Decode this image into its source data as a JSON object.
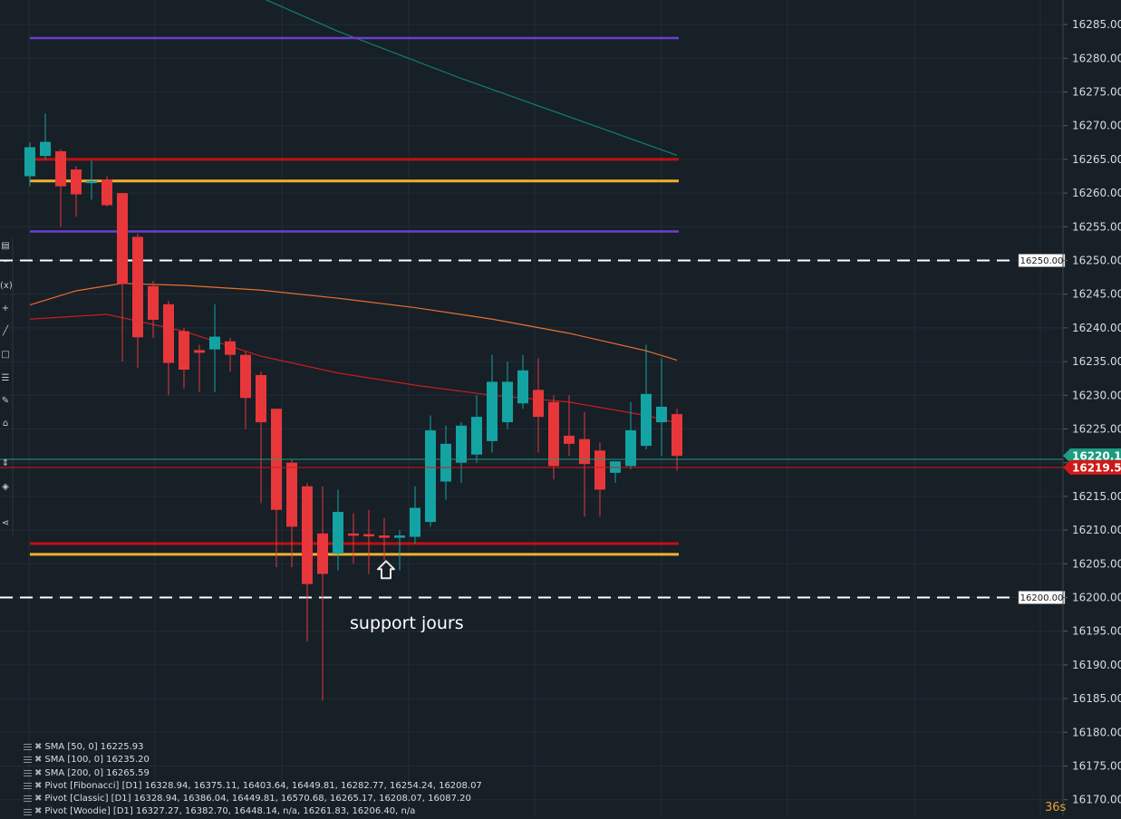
{
  "chart_data": {
    "type": "candlestick",
    "ylim": [
      16168,
      16288
    ],
    "yticks": [
      16170,
      16175,
      16180,
      16185,
      16190,
      16195,
      16200,
      16205,
      16210,
      16215,
      16220,
      16225,
      16230,
      16235,
      16240,
      16245,
      16250,
      16255,
      16260,
      16265,
      16270,
      16275,
      16280,
      16285
    ],
    "ytick_labels": [
      "16170.00",
      "16175.00",
      "16180.00",
      "16185.00",
      "16190.00",
      "16195.00",
      "16200.00",
      "16205.00",
      "16210.00",
      "16215.00",
      "16220.00",
      "16225.00",
      "16230.00",
      "16235.00",
      "16240.00",
      "16245.00",
      "16250.00",
      "16255.00",
      "16260.00",
      "16265.00",
      "16270.00",
      "16275.00",
      "16280.00",
      "16285.00"
    ],
    "grid": true,
    "candles": [
      {
        "o": 16262.5,
        "h": 16267.5,
        "l": 16261.0,
        "c": 16266.8
      },
      {
        "o": 16265.5,
        "h": 16271.8,
        "l": 16265.0,
        "c": 16267.6
      },
      {
        "o": 16266.2,
        "h": 16266.5,
        "l": 16255.0,
        "c": 16261.0
      },
      {
        "o": 16263.5,
        "h": 16264.0,
        "l": 16256.5,
        "c": 16259.8
      },
      {
        "o": 16261.5,
        "h": 16264.8,
        "l": 16259.0,
        "c": 16261.8
      },
      {
        "o": 16262.0,
        "h": 16262.5,
        "l": 16258.0,
        "c": 16258.2
      },
      {
        "o": 16260.0,
        "h": 16260.0,
        "l": 16235.0,
        "c": 16246.5
      },
      {
        "o": 16253.5,
        "h": 16254.0,
        "l": 16234.0,
        "c": 16238.6
      },
      {
        "o": 16246.2,
        "h": 16247.0,
        "l": 16238.5,
        "c": 16241.2
      },
      {
        "o": 16243.5,
        "h": 16244.0,
        "l": 16230.0,
        "c": 16234.8
      },
      {
        "o": 16239.5,
        "h": 16240.0,
        "l": 16231.0,
        "c": 16233.8
      },
      {
        "o": 16236.7,
        "h": 16237.5,
        "l": 16230.5,
        "c": 16236.3
      },
      {
        "o": 16236.8,
        "h": 16243.5,
        "l": 16230.5,
        "c": 16238.7
      },
      {
        "o": 16238.0,
        "h": 16238.5,
        "l": 16233.5,
        "c": 16236.0
      },
      {
        "o": 16236.0,
        "h": 16236.5,
        "l": 16225.0,
        "c": 16229.6
      },
      {
        "o": 16233.0,
        "h": 16233.5,
        "l": 16214.0,
        "c": 16226.0
      },
      {
        "o": 16228.0,
        "h": 16228.0,
        "l": 16204.5,
        "c": 16213.0
      },
      {
        "o": 16220.0,
        "h": 16220.5,
        "l": 16204.5,
        "c": 16210.5
      },
      {
        "o": 16216.5,
        "h": 16217.0,
        "l": 16193.5,
        "c": 16202.0
      },
      {
        "o": 16209.5,
        "h": 16216.5,
        "l": 16184.7,
        "c": 16203.5
      },
      {
        "o": 16206.5,
        "h": 16216.0,
        "l": 16204.0,
        "c": 16212.7
      },
      {
        "o": 16209.5,
        "h": 16212.5,
        "l": 16205.0,
        "c": 16209.3
      },
      {
        "o": 16209.4,
        "h": 16213.0,
        "l": 16203.5,
        "c": 16209.1
      },
      {
        "o": 16209.2,
        "h": 16211.8,
        "l": 16205.5,
        "c": 16209.0
      },
      {
        "o": 16209.0,
        "h": 16210.0,
        "l": 16204.0,
        "c": 16209.2
      },
      {
        "o": 16209.0,
        "h": 16216.5,
        "l": 16208.0,
        "c": 16213.3
      },
      {
        "o": 16211.2,
        "h": 16227.0,
        "l": 16210.5,
        "c": 16224.8
      },
      {
        "o": 16217.2,
        "h": 16225.5,
        "l": 16214.5,
        "c": 16222.8
      },
      {
        "o": 16220.0,
        "h": 16226.0,
        "l": 16217.0,
        "c": 16225.5
      },
      {
        "o": 16221.2,
        "h": 16230.0,
        "l": 16220.0,
        "c": 16226.8
      },
      {
        "o": 16223.2,
        "h": 16236.0,
        "l": 16221.5,
        "c": 16232.0
      },
      {
        "o": 16226.0,
        "h": 16235.0,
        "l": 16225.0,
        "c": 16232.0
      },
      {
        "o": 16228.8,
        "h": 16236.0,
        "l": 16228.0,
        "c": 16233.7
      },
      {
        "o": 16230.8,
        "h": 16235.5,
        "l": 16221.5,
        "c": 16226.8
      },
      {
        "o": 16229.0,
        "h": 16230.0,
        "l": 16217.5,
        "c": 16219.5
      },
      {
        "o": 16224.0,
        "h": 16230.0,
        "l": 16221.0,
        "c": 16222.8
      },
      {
        "o": 16223.5,
        "h": 16227.5,
        "l": 16212.0,
        "c": 16219.8
      },
      {
        "o": 16221.8,
        "h": 16223.0,
        "l": 16212.0,
        "c": 16216.0
      },
      {
        "o": 16218.5,
        "h": 16219.5,
        "l": 16217.0,
        "c": 16220.2
      },
      {
        "o": 16219.5,
        "h": 16229.0,
        "l": 16219.0,
        "c": 16224.8
      },
      {
        "o": 16222.5,
        "h": 16237.5,
        "l": 16222.0,
        "c": 16230.2
      },
      {
        "o": 16226.0,
        "h": 16235.5,
        "l": 16221.0,
        "c": 16228.3
      },
      {
        "o": 16227.2,
        "h": 16228.0,
        "l": 16218.8,
        "c": 16221.0
      }
    ],
    "sma": [
      {
        "period": 50,
        "value": "16225.93",
        "color": "#c22020",
        "points": [
          [
            0,
            16241.3
          ],
          [
            5,
            16242.0
          ],
          [
            10,
            16239.5
          ],
          [
            15,
            16235.8
          ],
          [
            20,
            16233.3
          ],
          [
            25,
            16231.5
          ],
          [
            30,
            16230.0
          ],
          [
            35,
            16229.0
          ],
          [
            40,
            16227.0
          ],
          [
            42,
            16225.9
          ]
        ]
      },
      {
        "period": 100,
        "value": "16235.20",
        "color": "#e8702a",
        "points": [
          [
            0,
            16243.4
          ],
          [
            3,
            16245.5
          ],
          [
            6,
            16246.6
          ],
          [
            10,
            16246.3
          ],
          [
            15,
            16245.6
          ],
          [
            20,
            16244.4
          ],
          [
            25,
            16243.0
          ],
          [
            30,
            16241.3
          ],
          [
            35,
            16239.2
          ],
          [
            40,
            16236.6
          ],
          [
            42,
            16235.2
          ]
        ]
      },
      {
        "period": 200,
        "value": "16265.59",
        "color": "#12806e",
        "points": [
          [
            14,
            16290
          ],
          [
            20,
            16284.0
          ],
          [
            28,
            16277.0
          ],
          [
            36,
            16270.5
          ],
          [
            42,
            16265.6
          ]
        ]
      }
    ],
    "levels": [
      {
        "value": 16283.0,
        "color": "#6a3fd0",
        "width": 2.5
      },
      {
        "value": 16265.0,
        "color": "#c01010",
        "width": 3
      },
      {
        "value": 16261.8,
        "color": "#f0b030",
        "width": 3
      },
      {
        "value": 16254.3,
        "color": "#6a3fd0",
        "width": 2.5
      },
      {
        "value": 16208.0,
        "color": "#c01010",
        "width": 3
      },
      {
        "value": 16206.4,
        "color": "#f0b030",
        "width": 3
      }
    ],
    "hlines": [
      {
        "value": 16250.0,
        "label": "16250.00"
      },
      {
        "value": 16200.0,
        "label": "16200.00"
      }
    ],
    "price_lines": [
      {
        "value": 16220.1,
        "color": "#1c9c80",
        "label": "16220.12"
      },
      {
        "value": 16219.56,
        "color": "#d01818",
        "label": "16219.56"
      }
    ],
    "annotations": [
      {
        "text": "support jours",
        "candle": 20,
        "y": 16196.2
      }
    ],
    "arrow": {
      "candle": 23,
      "y": 16204.6
    }
  },
  "legend": [
    "SMA [50, 0] 16225.93",
    "SMA [100, 0] 16235.20",
    "SMA [200, 0] 16265.59",
    "Pivot [Fibonacci] [D1] 16328.94, 16375.11, 16403.64, 16449.81, 16282.77, 16254.24, 16208.07",
    "Pivot [Classic] [D1] 16328.94, 16386.04, 16449.81, 16570.68, 16265.17, 16208.07, 16087.20",
    "Pivot [Woodie] [D1] 16327.27, 16382.70, 16448.14, n/a, 16261.83, 16206.40, n/a"
  ],
  "timer": "36s",
  "toolbar": {
    "icons": [
      "bars-icon",
      "crosshair-icon",
      "function-icon",
      "plus-icon",
      "line-icon",
      "rectangle-icon",
      "fib-icon",
      "brush-icon",
      "shape-icon",
      "measure-icon",
      "layers-icon",
      "share-icon"
    ],
    "fx_label": "(x)"
  }
}
